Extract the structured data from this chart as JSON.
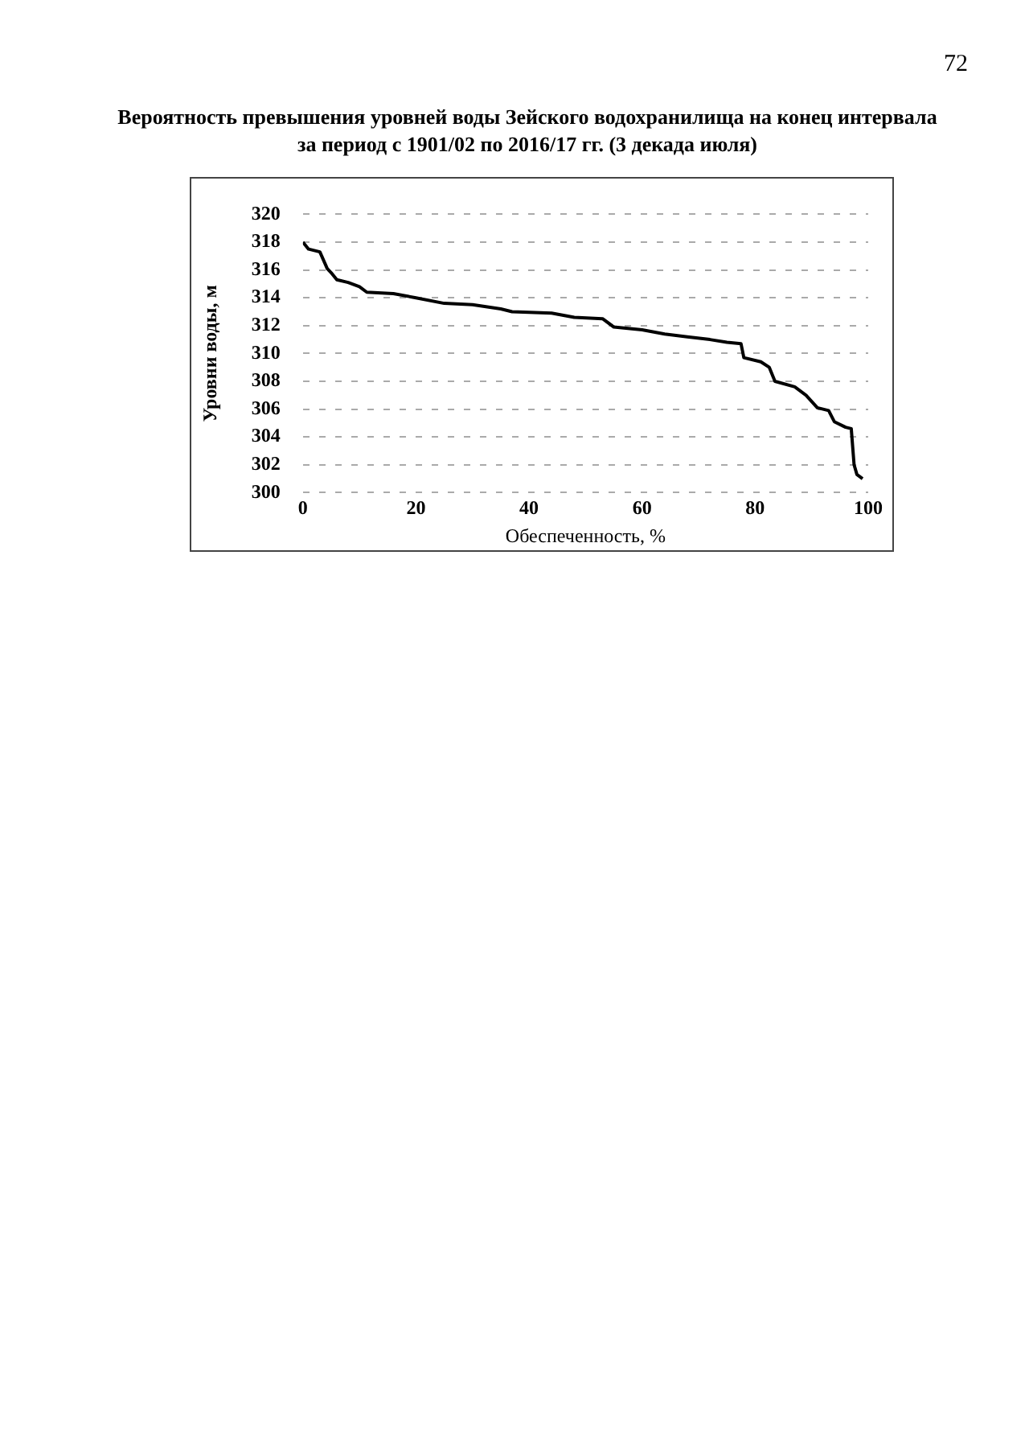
{
  "chart_data": {
    "type": "line",
    "title": "Вероятность превышения уровней воды Зейского водохранилища на конец интервала",
    "subtitle": "за период с 1901/02 по 2016/17 гг. (3 декада июля)",
    "xlabel": "Обеспеченность, %",
    "ylabel": "Уровни воды, м",
    "annotations": [
      "72"
    ],
    "x": [
      0,
      1,
      3,
      4.3,
      5,
      6,
      8,
      10,
      11.3,
      16,
      20,
      25,
      30,
      35,
      37,
      44,
      48,
      53,
      55,
      60,
      64,
      68,
      72,
      75,
      77.5,
      78,
      81,
      82.5,
      83.5,
      87,
      89,
      91,
      93,
      94,
      96,
      97,
      97.5,
      98,
      99
    ],
    "series": [
      {
        "color": "#000000",
        "values": [
          318,
          317.5,
          317.3,
          316.1,
          315.8,
          315.3,
          315.1,
          314.8,
          314.4,
          314.3,
          314.0,
          313.6,
          313.5,
          313.2,
          313.0,
          312.9,
          312.6,
          312.5,
          311.9,
          311.7,
          311.4,
          311.2,
          311.0,
          310.8,
          310.7,
          309.7,
          309.4,
          309.0,
          308.0,
          307.6,
          307.0,
          306.1,
          305.9,
          305.1,
          304.7,
          304.6,
          302.0,
          301.3,
          301.0
        ]
      }
    ],
    "xlim": [
      0,
      100
    ],
    "xticks": [
      0,
      20,
      40,
      60,
      80,
      100
    ],
    "ylim": [
      300,
      320
    ],
    "yticks": [
      300,
      302,
      304,
      306,
      308,
      310,
      312,
      314,
      316,
      318,
      320
    ],
    "grid": "y",
    "marker": "none",
    "line_style": "solid",
    "legend": false
  }
}
